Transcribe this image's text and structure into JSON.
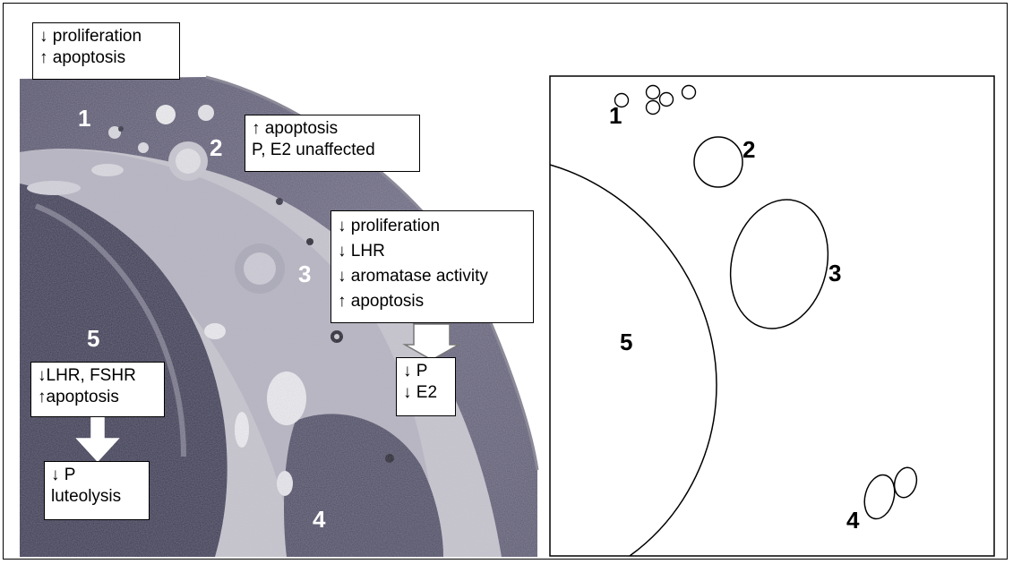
{
  "micrograph": {
    "labels": {
      "one": "1",
      "two": "2",
      "three": "3",
      "four": "4",
      "five": "5"
    },
    "boxes": {
      "stage1": [
        "↓ proliferation",
        "↑ apoptosis"
      ],
      "stage2": [
        "↑ apoptosis",
        "P, E2 unaffected"
      ],
      "stage3": [
        "↓ proliferation",
        "↓ LHR",
        "↓ aromatase activity",
        "↑ apoptosis"
      ],
      "stage3_outcome": [
        "↓ P",
        "↓ E2"
      ],
      "stage5": [
        "↓LHR, FSHR",
        "↑apoptosis"
      ],
      "stage5_outcome": [
        "↓ P",
        "luteolysis"
      ]
    }
  },
  "schematic": {
    "labels": {
      "one": "1",
      "two": "2",
      "three": "3",
      "four": "4",
      "five": "5"
    }
  }
}
